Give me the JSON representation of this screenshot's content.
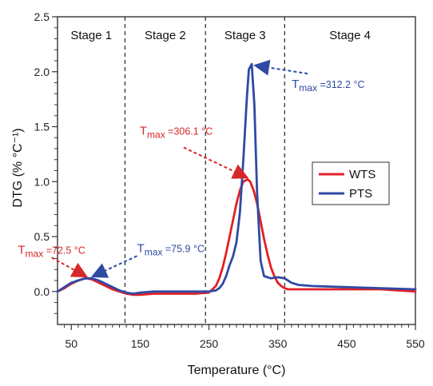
{
  "chart_data": {
    "type": "line",
    "xlabel": "Temperature (°C)",
    "ylabel": "DTG (% °C⁻¹)",
    "xlim": [
      30,
      550
    ],
    "ylim": [
      -0.3,
      2.5
    ],
    "xticks": [
      50,
      150,
      250,
      350,
      450,
      550
    ],
    "yticks": [
      "0.0",
      "0.5",
      "1.0",
      "1.5",
      "2.0",
      "2.5"
    ],
    "stages": [
      {
        "label": "Stage 1",
        "from": 30,
        "to": 128
      },
      {
        "label": "Stage 2",
        "from": 128,
        "to": 245
      },
      {
        "label": "Stage 3",
        "from": 245,
        "to": 360
      },
      {
        "label": "Stage 4",
        "from": 360,
        "to": 550
      }
    ],
    "series": [
      {
        "name": "WTS",
        "color": "#e21f26",
        "x": [
          30,
          40,
          50,
          60,
          70,
          72.5,
          80,
          90,
          100,
          110,
          120,
          130,
          140,
          150,
          170,
          200,
          230,
          250,
          260,
          265,
          270,
          275,
          280,
          285,
          290,
          295,
          300,
          306.1,
          310,
          315,
          320,
          325,
          330,
          335,
          340,
          345,
          350,
          355,
          360,
          365,
          370,
          380,
          400,
          450,
          500,
          550
        ],
        "values": [
          0.0,
          0.03,
          0.07,
          0.1,
          0.12,
          0.12,
          0.11,
          0.08,
          0.05,
          0.02,
          0.0,
          -0.02,
          -0.03,
          -0.03,
          -0.02,
          -0.02,
          -0.02,
          -0.01,
          0.05,
          0.12,
          0.22,
          0.35,
          0.5,
          0.65,
          0.8,
          0.92,
          1.0,
          1.02,
          1.0,
          0.92,
          0.8,
          0.64,
          0.48,
          0.34,
          0.22,
          0.14,
          0.08,
          0.05,
          0.03,
          0.02,
          0.02,
          0.02,
          0.02,
          0.02,
          0.02,
          0.0
        ]
      },
      {
        "name": "PTS",
        "color": "#2f4aa3",
        "x": [
          30,
          40,
          50,
          60,
          70,
          75.9,
          80,
          90,
          100,
          110,
          120,
          130,
          140,
          150,
          170,
          200,
          230,
          250,
          260,
          265,
          270,
          275,
          280,
          285,
          290,
          295,
          300,
          305,
          308,
          312.2,
          316,
          320,
          325,
          330,
          340,
          350,
          360,
          370,
          380,
          400,
          450,
          500,
          550
        ],
        "values": [
          0.0,
          0.04,
          0.08,
          0.1,
          0.12,
          0.12,
          0.12,
          0.1,
          0.07,
          0.04,
          0.01,
          -0.01,
          -0.02,
          -0.01,
          0.0,
          0.0,
          0.0,
          0.0,
          0.01,
          0.03,
          0.07,
          0.14,
          0.24,
          0.32,
          0.45,
          0.72,
          1.2,
          1.75,
          2.02,
          2.07,
          1.7,
          0.9,
          0.28,
          0.14,
          0.12,
          0.13,
          0.12,
          0.08,
          0.06,
          0.05,
          0.04,
          0.03,
          0.02
        ]
      }
    ],
    "annotations": [
      {
        "series": "WTS",
        "prefix": "T",
        "sub": "max",
        "value": " =72.5 °C",
        "x": 72.5,
        "y": 0.12
      },
      {
        "series": "PTS",
        "prefix": "T",
        "sub": "max",
        "value": " =75.9 °C",
        "x": 75.9,
        "y": 0.12
      },
      {
        "series": "WTS",
        "prefix": "T",
        "sub": "max",
        "value": " =306.1 °C",
        "x": 306.1,
        "y": 1.02
      },
      {
        "series": "PTS",
        "prefix": "T",
        "sub": "max",
        "value": " =312.2 °C",
        "x": 312.2,
        "y": 2.07
      }
    ],
    "legend": {
      "position": "right",
      "items": [
        "WTS",
        "PTS"
      ]
    }
  }
}
